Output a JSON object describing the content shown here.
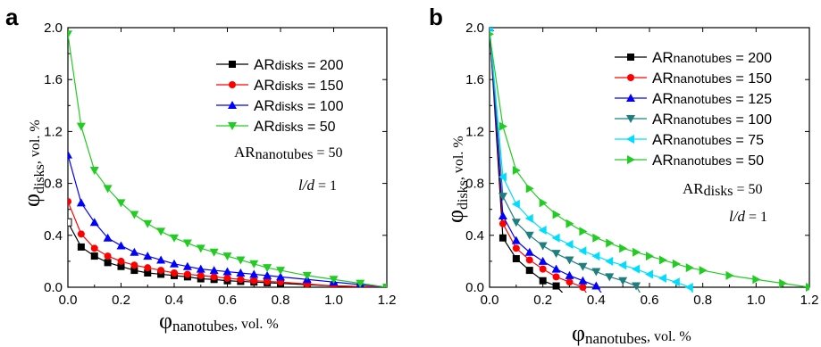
{
  "chart_data": [
    {
      "type": "line",
      "panel_label": "a",
      "xlabel": {
        "main": "φ",
        "sub": "nanotubes",
        "unit": ", vol. %"
      },
      "ylabel": {
        "main": "φ",
        "sub": "disks",
        "unit": ", vol. %"
      },
      "xlim": [
        0,
        1.2
      ],
      "ylim": [
        0,
        2.0
      ],
      "xticks": [
        "0.0",
        "0.2",
        "0.4",
        "0.6",
        "0.8",
        "1.0",
        "1.2"
      ],
      "yticks": [
        "0.0",
        "0.4",
        "0.8",
        "1.2",
        "1.6",
        "2.0"
      ],
      "legend_position": "top-right",
      "annotations": [
        {
          "main": "AR",
          "sub": "nanotubes",
          "rest": " = 50"
        },
        {
          "main": "l/d",
          "sub": "",
          "rest": " = 1"
        }
      ],
      "series": [
        {
          "legend_main": "AR",
          "legend_sub": "disks",
          "legend_rest": " = 200",
          "color": "#000000",
          "marker": "square",
          "x": [
            0.0,
            0.05,
            0.1,
            0.15,
            0.2,
            0.25,
            0.3,
            0.35,
            0.4,
            0.45,
            0.5,
            0.55,
            0.6,
            0.65,
            0.7,
            0.75,
            0.8,
            0.9,
            1.0,
            1.1,
            1.2
          ],
          "y": [
            0.5,
            0.31,
            0.24,
            0.19,
            0.16,
            0.13,
            0.11,
            0.1,
            0.09,
            0.08,
            0.065,
            0.06,
            0.05,
            0.045,
            0.04,
            0.035,
            0.03,
            0.02,
            0.01,
            0.005,
            0.0
          ]
        },
        {
          "legend_main": "AR",
          "legend_sub": "disks",
          "legend_rest": " = 150",
          "color": "#ff0000",
          "marker": "circle",
          "x": [
            0.0,
            0.05,
            0.1,
            0.15,
            0.2,
            0.25,
            0.3,
            0.35,
            0.4,
            0.45,
            0.5,
            0.55,
            0.6,
            0.65,
            0.7,
            0.75,
            0.8,
            0.9,
            1.0,
            1.1,
            1.2
          ],
          "y": [
            0.66,
            0.41,
            0.3,
            0.24,
            0.2,
            0.17,
            0.15,
            0.13,
            0.11,
            0.1,
            0.09,
            0.08,
            0.07,
            0.06,
            0.05,
            0.045,
            0.04,
            0.025,
            0.01,
            0.005,
            0.0
          ]
        },
        {
          "legend_main": "AR",
          "legend_sub": "disks",
          "legend_rest": " = 100",
          "color": "#0000ff",
          "marker": "triangle-up",
          "x": [
            0.0,
            0.05,
            0.1,
            0.15,
            0.2,
            0.25,
            0.3,
            0.35,
            0.4,
            0.45,
            0.5,
            0.55,
            0.6,
            0.65,
            0.7,
            0.75,
            0.8,
            0.9,
            1.0,
            1.1,
            1.2
          ],
          "y": [
            1.02,
            0.65,
            0.5,
            0.38,
            0.32,
            0.27,
            0.24,
            0.21,
            0.18,
            0.16,
            0.14,
            0.13,
            0.12,
            0.11,
            0.1,
            0.09,
            0.08,
            0.06,
            0.04,
            0.02,
            0.0
          ]
        },
        {
          "legend_main": "AR",
          "legend_sub": "disks",
          "legend_rest": " = 50",
          "color": "#22cc22",
          "marker": "triangle-down",
          "x": [
            0.0,
            0.05,
            0.1,
            0.15,
            0.2,
            0.25,
            0.3,
            0.35,
            0.4,
            0.45,
            0.5,
            0.55,
            0.6,
            0.65,
            0.7,
            0.75,
            0.8,
            0.9,
            1.0,
            1.1,
            1.2
          ],
          "y": [
            1.95,
            1.24,
            0.9,
            0.76,
            0.65,
            0.56,
            0.49,
            0.43,
            0.38,
            0.34,
            0.3,
            0.27,
            0.24,
            0.21,
            0.18,
            0.15,
            0.13,
            0.09,
            0.06,
            0.03,
            0.0
          ]
        }
      ]
    },
    {
      "type": "line",
      "panel_label": "b",
      "xlabel": {
        "main": "φ",
        "sub": "nanotubes",
        "unit": ", vol. %"
      },
      "ylabel": {
        "main": "φ",
        "sub": "disks",
        "unit": ", vol. %"
      },
      "xlim": [
        0,
        1.2
      ],
      "ylim": [
        0,
        2.0
      ],
      "xticks": [
        "0.0",
        "0.2",
        "0.4",
        "0.6",
        "0.8",
        "1.0",
        "1.2"
      ],
      "yticks": [
        "0.0",
        "0.4",
        "0.8",
        "1.2",
        "1.6",
        "2.0"
      ],
      "legend_position": "top-right",
      "annotations": [
        {
          "main": "AR",
          "sub": "disks",
          "rest": " = 50"
        },
        {
          "main": "l/d",
          "sub": "",
          "rest": " = 1"
        }
      ],
      "series": [
        {
          "legend_main": "AR",
          "legend_sub": "nanotubes",
          "legend_rest": " = 200",
          "color": "#000000",
          "marker": "square",
          "x": [
            0.0,
            0.05,
            0.1,
            0.15,
            0.2,
            0.25,
            0.3
          ],
          "y": [
            2.0,
            0.38,
            0.22,
            0.13,
            0.05,
            0.01,
            -0.1
          ]
        },
        {
          "legend_main": "AR",
          "legend_sub": "nanotubes",
          "legend_rest": " = 150",
          "color": "#ff0000",
          "marker": "circle",
          "x": [
            0.0,
            0.05,
            0.1,
            0.15,
            0.2,
            0.25,
            0.3,
            0.35,
            0.38
          ],
          "y": [
            2.0,
            0.49,
            0.3,
            0.21,
            0.14,
            0.08,
            0.04,
            0.0,
            -0.1
          ]
        },
        {
          "legend_main": "AR",
          "legend_sub": "nanotubes",
          "legend_rest": " = 125",
          "color": "#0000ff",
          "marker": "triangle-up",
          "x": [
            0.0,
            0.05,
            0.1,
            0.15,
            0.2,
            0.25,
            0.3,
            0.35,
            0.4,
            0.44
          ],
          "y": [
            2.0,
            0.55,
            0.36,
            0.27,
            0.2,
            0.14,
            0.09,
            0.05,
            0.01,
            -0.1
          ]
        },
        {
          "legend_main": "AR",
          "legend_sub": "nanotubes",
          "legend_rest": " = 100",
          "color": "#1f7f7f",
          "marker": "triangle-down",
          "x": [
            0.0,
            0.05,
            0.1,
            0.15,
            0.2,
            0.25,
            0.3,
            0.35,
            0.4,
            0.45,
            0.5,
            0.55,
            0.58
          ],
          "y": [
            2.0,
            0.7,
            0.5,
            0.4,
            0.32,
            0.26,
            0.21,
            0.16,
            0.12,
            0.08,
            0.05,
            0.01,
            -0.1
          ]
        },
        {
          "legend_main": "AR",
          "legend_sub": "nanotubes",
          "legend_rest": " = 75",
          "color": "#00ddff",
          "marker": "triangle-left",
          "x": [
            0.0,
            0.05,
            0.1,
            0.15,
            0.2,
            0.25,
            0.3,
            0.35,
            0.4,
            0.45,
            0.5,
            0.55,
            0.6,
            0.65,
            0.7,
            0.75,
            0.78
          ],
          "y": [
            2.0,
            0.85,
            0.64,
            0.53,
            0.44,
            0.38,
            0.33,
            0.28,
            0.24,
            0.2,
            0.17,
            0.14,
            0.1,
            0.07,
            0.04,
            0.0,
            -0.1
          ]
        },
        {
          "legend_main": "AR",
          "legend_sub": "nanotubes",
          "legend_rest": " = 50",
          "color": "#22cc22",
          "marker": "triangle-right",
          "x": [
            0.0,
            0.05,
            0.1,
            0.15,
            0.2,
            0.25,
            0.3,
            0.35,
            0.4,
            0.45,
            0.5,
            0.55,
            0.6,
            0.65,
            0.7,
            0.75,
            0.8,
            0.9,
            1.0,
            1.1,
            1.2
          ],
          "y": [
            1.95,
            1.24,
            0.9,
            0.76,
            0.65,
            0.56,
            0.49,
            0.43,
            0.38,
            0.34,
            0.3,
            0.27,
            0.24,
            0.21,
            0.18,
            0.15,
            0.13,
            0.09,
            0.06,
            0.03,
            0.0
          ]
        }
      ]
    }
  ]
}
